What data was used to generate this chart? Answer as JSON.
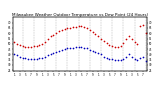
{
  "title": "Milwaukee Weather Outdoor Temperature vs Dew Point (24 Hours)",
  "title_fontsize": 3.0,
  "temp_color": "#cc0000",
  "dew_color": "#0000bb",
  "black_color": "#000000",
  "bg_color": "#ffffff",
  "grid_color": "#888888",
  "ylim": [
    24,
    75
  ],
  "xlim": [
    0.5,
    48.5
  ],
  "temp_x": [
    1,
    2,
    3,
    4,
    5,
    6,
    7,
    8,
    9,
    10,
    11,
    12,
    13,
    14,
    15,
    16,
    17,
    18,
    19,
    20,
    21,
    22,
    23,
    24,
    25,
    26,
    27,
    28,
    29,
    30,
    31,
    32,
    33,
    34,
    35,
    36,
    37,
    38,
    39,
    40,
    41,
    42,
    43,
    44,
    45,
    46,
    47,
    48
  ],
  "temp_y": [
    52,
    50,
    49,
    48,
    47,
    47,
    47,
    48,
    48,
    49,
    50,
    52,
    55,
    57,
    58,
    60,
    62,
    63,
    64,
    65,
    65,
    66,
    66,
    67,
    67,
    66,
    65,
    63,
    61,
    59,
    57,
    55,
    53,
    51,
    49,
    48,
    47,
    47,
    48,
    51,
    55,
    57,
    55,
    52,
    50,
    67,
    68,
    60
  ],
  "dew_x": [
    1,
    2,
    3,
    4,
    5,
    6,
    7,
    8,
    9,
    10,
    11,
    12,
    13,
    14,
    15,
    16,
    17,
    18,
    19,
    20,
    21,
    22,
    23,
    24,
    25,
    26,
    27,
    28,
    29,
    30,
    31,
    32,
    33,
    34,
    35,
    36,
    37,
    38,
    39,
    40,
    41,
    42,
    43,
    44,
    45,
    46,
    47,
    48
  ],
  "dew_y": [
    40,
    39,
    38,
    37,
    37,
    36,
    36,
    36,
    36,
    37,
    37,
    38,
    39,
    40,
    41,
    42,
    43,
    44,
    45,
    46,
    46,
    46,
    47,
    47,
    47,
    46,
    46,
    44,
    43,
    42,
    41,
    40,
    38,
    37,
    36,
    36,
    35,
    35,
    35,
    36,
    38,
    40,
    38,
    36,
    35,
    37,
    38,
    34
  ],
  "vgrid_x": [
    4,
    8,
    12,
    16,
    20,
    24,
    28,
    32,
    36,
    40,
    44,
    48
  ],
  "xtick_positions": [
    1,
    3,
    5,
    7,
    9,
    11,
    13,
    15,
    17,
    19,
    21,
    23,
    25,
    27,
    29,
    31,
    33,
    35,
    37,
    39,
    41,
    43,
    45,
    47
  ],
  "xtick_labels": [
    "1",
    "3",
    "5",
    "7",
    "9",
    "1",
    "3",
    "5",
    "7",
    "9",
    "1",
    "3",
    "5",
    "7",
    "9",
    "1",
    "3",
    "5",
    "7",
    "9",
    "1",
    "3",
    "5",
    "7"
  ],
  "ytick_positions": [
    25,
    30,
    35,
    40,
    45,
    50,
    55,
    60,
    65,
    70
  ],
  "markersize": 1.5,
  "figwidth": 1.6,
  "figheight": 0.87,
  "dpi": 100
}
